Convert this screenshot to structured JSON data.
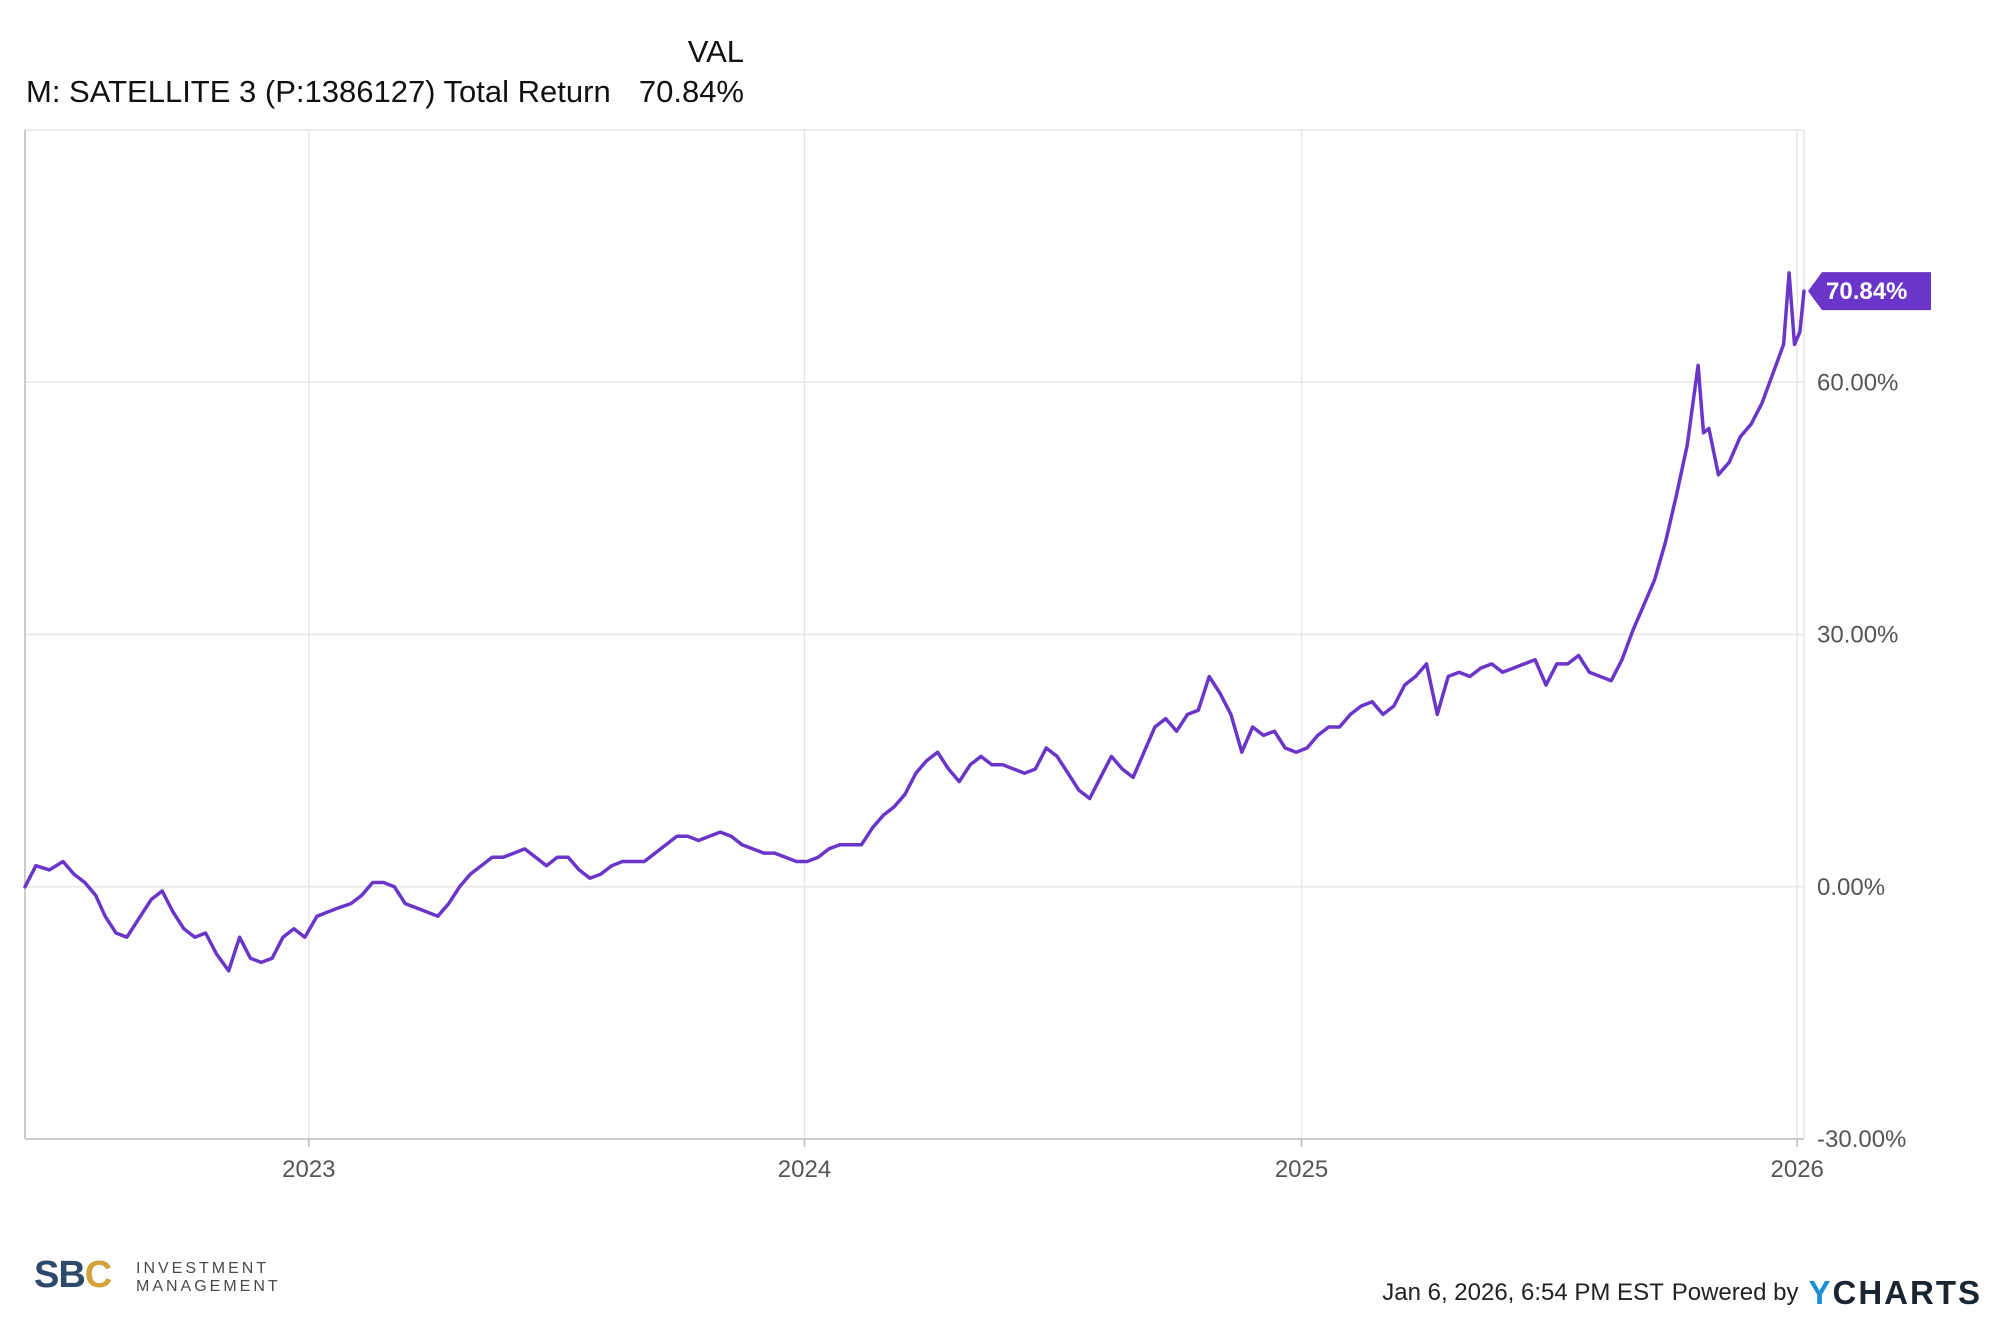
{
  "legend": {
    "column_header": "VAL",
    "series_label": "M: SATELLITE 3 (P:1386127) Total Return",
    "series_value": "70.84%"
  },
  "colors": {
    "series": "#6a35c9",
    "grid": "#e6e6e6",
    "axis": "#bbbbbb",
    "axis_text": "#555555"
  },
  "chart_data": {
    "type": "line",
    "xlabel": "",
    "ylabel": "",
    "x_range": [
      "2022-06-06",
      "2026-01-06"
    ],
    "ylim": [
      -30,
      90
    ],
    "y_ticks": [
      -30,
      0,
      30,
      60
    ],
    "y_tick_labels": [
      "-30.00%",
      "0.00%",
      "30.00%",
      "60.00%"
    ],
    "x_ticks": [
      "2023-01-01",
      "2024-01-01",
      "2025-01-01",
      "2026-01-01"
    ],
    "x_tick_labels": [
      "2023",
      "2024",
      "2025",
      "2026"
    ],
    "grid": true,
    "end_label": "70.84%",
    "series": [
      {
        "name": "M: SATELLITE 3 (P:1386127) Total Return",
        "points": [
          [
            "2022-06-06",
            0.0
          ],
          [
            "2022-06-14",
            2.5
          ],
          [
            "2022-06-24",
            2.0
          ],
          [
            "2022-07-04",
            3.0
          ],
          [
            "2022-07-12",
            1.5
          ],
          [
            "2022-07-20",
            0.5
          ],
          [
            "2022-07-28",
            -1.0
          ],
          [
            "2022-08-04",
            -3.5
          ],
          [
            "2022-08-12",
            -5.5
          ],
          [
            "2022-08-20",
            -6.0
          ],
          [
            "2022-08-30",
            -3.5
          ],
          [
            "2022-09-07",
            -1.5
          ],
          [
            "2022-09-15",
            -0.5
          ],
          [
            "2022-09-23",
            -3.0
          ],
          [
            "2022-10-01",
            -5.0
          ],
          [
            "2022-10-09",
            -6.0
          ],
          [
            "2022-10-17",
            -5.5
          ],
          [
            "2022-10-25",
            -8.0
          ],
          [
            "2022-11-03",
            -10.0
          ],
          [
            "2022-11-11",
            -6.0
          ],
          [
            "2022-11-19",
            -8.5
          ],
          [
            "2022-11-27",
            -9.0
          ],
          [
            "2022-12-05",
            -8.5
          ],
          [
            "2022-12-13",
            -6.0
          ],
          [
            "2022-12-21",
            -5.0
          ],
          [
            "2022-12-29",
            -6.0
          ],
          [
            "2023-01-07",
            -3.5
          ],
          [
            "2023-01-15",
            -3.0
          ],
          [
            "2023-01-23",
            -2.5
          ],
          [
            "2023-02-01",
            -2.0
          ],
          [
            "2023-02-09",
            -1.0
          ],
          [
            "2023-02-17",
            0.5
          ],
          [
            "2023-02-25",
            0.5
          ],
          [
            "2023-03-05",
            0.0
          ],
          [
            "2023-03-13",
            -2.0
          ],
          [
            "2023-03-21",
            -2.5
          ],
          [
            "2023-03-29",
            -3.0
          ],
          [
            "2023-04-06",
            -3.5
          ],
          [
            "2023-04-14",
            -2.0
          ],
          [
            "2023-04-22",
            0.0
          ],
          [
            "2023-04-30",
            1.5
          ],
          [
            "2023-05-08",
            2.5
          ],
          [
            "2023-05-16",
            3.5
          ],
          [
            "2023-05-24",
            3.5
          ],
          [
            "2023-06-01",
            4.0
          ],
          [
            "2023-06-09",
            4.5
          ],
          [
            "2023-06-17",
            3.5
          ],
          [
            "2023-06-25",
            2.5
          ],
          [
            "2023-07-03",
            3.5
          ],
          [
            "2023-07-11",
            3.5
          ],
          [
            "2023-07-19",
            2.0
          ],
          [
            "2023-07-27",
            1.0
          ],
          [
            "2023-08-04",
            1.5
          ],
          [
            "2023-08-12",
            2.5
          ],
          [
            "2023-08-20",
            3.0
          ],
          [
            "2023-08-28",
            3.0
          ],
          [
            "2023-09-05",
            3.0
          ],
          [
            "2023-09-13",
            4.0
          ],
          [
            "2023-09-21",
            5.0
          ],
          [
            "2023-09-29",
            6.0
          ],
          [
            "2023-10-07",
            6.0
          ],
          [
            "2023-10-15",
            5.5
          ],
          [
            "2023-10-23",
            6.0
          ],
          [
            "2023-10-31",
            6.5
          ],
          [
            "2023-11-08",
            6.0
          ],
          [
            "2023-11-16",
            5.0
          ],
          [
            "2023-11-24",
            4.5
          ],
          [
            "2023-12-02",
            4.0
          ],
          [
            "2023-12-10",
            4.0
          ],
          [
            "2023-12-18",
            3.5
          ],
          [
            "2023-12-26",
            3.0
          ],
          [
            "2024-01-03",
            3.0
          ],
          [
            "2024-01-11",
            3.5
          ],
          [
            "2024-01-19",
            4.5
          ],
          [
            "2024-01-27",
            5.0
          ],
          [
            "2024-02-04",
            5.0
          ],
          [
            "2024-02-12",
            5.0
          ],
          [
            "2024-02-20",
            7.0
          ],
          [
            "2024-02-28",
            8.5
          ],
          [
            "2024-03-07",
            9.5
          ],
          [
            "2024-03-15",
            11.0
          ],
          [
            "2024-03-23",
            13.5
          ],
          [
            "2024-03-31",
            15.0
          ],
          [
            "2024-04-08",
            16.0
          ],
          [
            "2024-04-16",
            14.0
          ],
          [
            "2024-04-24",
            12.5
          ],
          [
            "2024-05-02",
            14.5
          ],
          [
            "2024-05-10",
            15.5
          ],
          [
            "2024-05-18",
            14.5
          ],
          [
            "2024-05-26",
            14.5
          ],
          [
            "2024-06-03",
            14.0
          ],
          [
            "2024-06-11",
            13.5
          ],
          [
            "2024-06-19",
            14.0
          ],
          [
            "2024-06-27",
            16.5
          ],
          [
            "2024-07-05",
            15.5
          ],
          [
            "2024-07-13",
            13.5
          ],
          [
            "2024-07-21",
            11.5
          ],
          [
            "2024-07-29",
            10.5
          ],
          [
            "2024-08-06",
            13.0
          ],
          [
            "2024-08-14",
            15.5
          ],
          [
            "2024-08-22",
            14.0
          ],
          [
            "2024-08-30",
            13.0
          ],
          [
            "2024-09-07",
            16.0
          ],
          [
            "2024-09-15",
            19.0
          ],
          [
            "2024-09-23",
            20.0
          ],
          [
            "2024-10-01",
            18.5
          ],
          [
            "2024-10-09",
            20.5
          ],
          [
            "2024-10-17",
            21.0
          ],
          [
            "2024-10-25",
            25.0
          ],
          [
            "2024-11-02",
            23.0
          ],
          [
            "2024-11-10",
            20.5
          ],
          [
            "2024-11-18",
            16.0
          ],
          [
            "2024-11-26",
            19.0
          ],
          [
            "2024-12-04",
            18.0
          ],
          [
            "2024-12-12",
            18.5
          ],
          [
            "2024-12-20",
            16.5
          ],
          [
            "2024-12-28",
            16.0
          ],
          [
            "2025-01-05",
            16.5
          ],
          [
            "2025-01-13",
            18.0
          ],
          [
            "2025-01-21",
            19.0
          ],
          [
            "2025-01-29",
            19.0
          ],
          [
            "2025-02-06",
            20.5
          ],
          [
            "2025-02-14",
            21.5
          ],
          [
            "2025-02-22",
            22.0
          ],
          [
            "2025-03-02",
            20.5
          ],
          [
            "2025-03-10",
            21.5
          ],
          [
            "2025-03-18",
            24.0
          ],
          [
            "2025-03-26",
            25.0
          ],
          [
            "2025-04-03",
            26.5
          ],
          [
            "2025-04-11",
            20.5
          ],
          [
            "2025-04-19",
            25.0
          ],
          [
            "2025-04-27",
            25.5
          ],
          [
            "2025-05-05",
            25.0
          ],
          [
            "2025-05-13",
            26.0
          ],
          [
            "2025-05-21",
            26.5
          ],
          [
            "2025-05-29",
            25.5
          ],
          [
            "2025-06-06",
            26.0
          ],
          [
            "2025-06-14",
            26.5
          ],
          [
            "2025-06-22",
            27.0
          ],
          [
            "2025-06-30",
            24.0
          ],
          [
            "2025-07-08",
            26.5
          ],
          [
            "2025-07-16",
            26.5
          ],
          [
            "2025-07-24",
            27.5
          ],
          [
            "2025-08-01",
            25.5
          ],
          [
            "2025-08-09",
            25.0
          ],
          [
            "2025-08-17",
            24.5
          ],
          [
            "2025-08-25",
            27.0
          ],
          [
            "2025-09-02",
            30.5
          ],
          [
            "2025-09-10",
            33.5
          ],
          [
            "2025-09-18",
            36.5
          ],
          [
            "2025-09-26",
            41.0
          ],
          [
            "2025-10-04",
            46.5
          ],
          [
            "2025-10-12",
            52.5
          ],
          [
            "2025-10-20",
            62.0
          ],
          [
            "2025-10-24",
            54.0
          ],
          [
            "2025-10-28",
            54.5
          ],
          [
            "2025-11-04",
            49.0
          ],
          [
            "2025-11-12",
            50.5
          ],
          [
            "2025-11-20",
            53.5
          ],
          [
            "2025-11-28",
            55.0
          ],
          [
            "2025-12-06",
            57.5
          ],
          [
            "2025-12-14",
            61.0
          ],
          [
            "2025-12-22",
            64.5
          ],
          [
            "2025-12-26",
            73.0
          ],
          [
            "2025-12-30",
            64.5
          ],
          [
            "2026-01-03",
            66.0
          ],
          [
            "2026-01-06",
            70.84
          ]
        ]
      }
    ]
  },
  "footer": {
    "timestamp": "Jan 6, 2026, 6:54 PM EST",
    "powered_by": "Powered by",
    "brand_y": "Y",
    "brand_rest": "CHARTS"
  },
  "logo": {
    "sbc_main": "SB",
    "sbc_c": "C",
    "line1": "INVESTMENT",
    "line2": "MANAGEMENT"
  }
}
